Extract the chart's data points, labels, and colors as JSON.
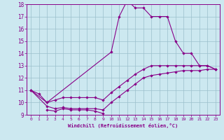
{
  "xlabel": "Windchill (Refroidissement éolien,°C)",
  "background_color": "#cce8f0",
  "line_color": "#880088",
  "xlim": [
    -0.5,
    23.5
  ],
  "ylim": [
    9,
    18
  ],
  "xticks": [
    0,
    1,
    2,
    3,
    4,
    5,
    6,
    7,
    8,
    9,
    10,
    11,
    12,
    13,
    14,
    15,
    16,
    17,
    18,
    19,
    20,
    21,
    22,
    23
  ],
  "yticks": [
    9,
    10,
    11,
    12,
    13,
    14,
    15,
    16,
    17,
    18
  ],
  "curve1_x": [
    0,
    1,
    2,
    10,
    11,
    12,
    13,
    14,
    15,
    16,
    17,
    18,
    19,
    20,
    21,
    22,
    23
  ],
  "curve1_y": [
    11.0,
    10.7,
    10.0,
    14.1,
    17.0,
    18.3,
    17.7,
    17.7,
    17.0,
    17.0,
    17.0,
    15.0,
    14.0,
    14.0,
    13.0,
    13.0,
    12.7
  ],
  "curve2_x": [
    0,
    2,
    3,
    4,
    5,
    6,
    7,
    8,
    9,
    10,
    11,
    12,
    13,
    14,
    15,
    16,
    17,
    18,
    19,
    20,
    21,
    22,
    23
  ],
  "curve2_y": [
    11.0,
    10.0,
    10.2,
    10.4,
    10.4,
    10.4,
    10.4,
    10.4,
    10.2,
    10.8,
    11.3,
    11.8,
    12.3,
    12.7,
    13.0,
    13.0,
    13.0,
    13.0,
    13.0,
    13.0,
    13.0,
    13.0,
    12.7
  ],
  "curve3_x": [
    0,
    2,
    3,
    4,
    5,
    6,
    7,
    8,
    9,
    10,
    11,
    12,
    13,
    14,
    15,
    16,
    17,
    18,
    19,
    20,
    21,
    22,
    23
  ],
  "curve3_y": [
    11.0,
    9.7,
    9.5,
    9.6,
    9.5,
    9.5,
    9.5,
    9.5,
    9.4,
    10.0,
    10.5,
    11.0,
    11.5,
    12.0,
    12.2,
    12.3,
    12.4,
    12.5,
    12.6,
    12.6,
    12.6,
    12.7,
    12.7
  ],
  "curve4_x": [
    2,
    3,
    4,
    5,
    6,
    7,
    8,
    9
  ],
  "curve4_y": [
    9.4,
    9.3,
    9.5,
    9.4,
    9.4,
    9.4,
    9.3,
    9.1
  ]
}
